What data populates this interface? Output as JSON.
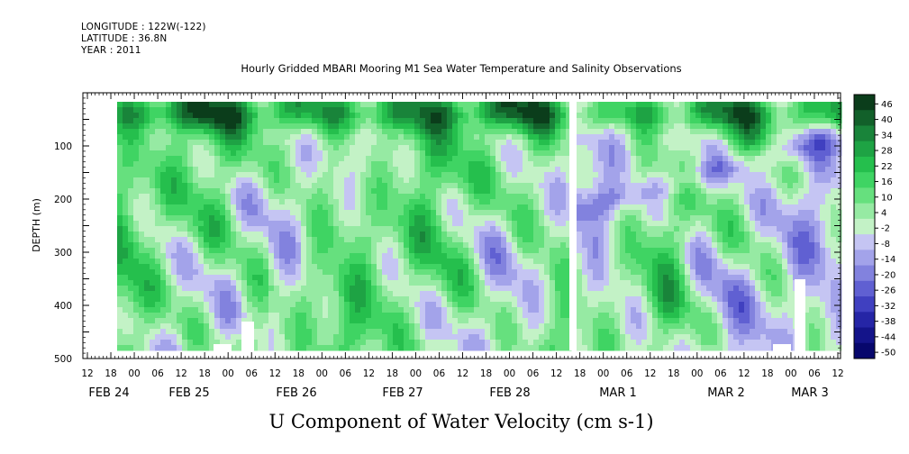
{
  "header": {
    "longitude": "LONGITUDE : 122W(-122)",
    "latitude": "LATITUDE : 36.8N",
    "year": "YEAR : 2011"
  },
  "chart_data": {
    "type": "heatmap",
    "title": "Hourly Gridded MBARI Mooring M1 Sea Water Temperature and Salinity Observations",
    "xlabel": "U Component of Water Velocity (cm s-1)",
    "ylabel": "DEPTH (m)",
    "ylim": [
      500,
      0
    ],
    "y_ticks": [
      100,
      200,
      300,
      400,
      500
    ],
    "x_hour_ticks": [
      "12",
      "18",
      "00",
      "06",
      "12",
      "18",
      "00",
      "06",
      "12",
      "18",
      "00",
      "06",
      "12",
      "18",
      "00",
      "06",
      "12",
      "18",
      "00",
      "06",
      "12",
      "18",
      "00",
      "06",
      "12",
      "18",
      "00",
      "06",
      "12",
      "18",
      "00",
      "06",
      "12"
    ],
    "x_day_labels": [
      "FEB 24",
      "FEB 25",
      "FEB 26",
      "FEB 27",
      "FEB 28",
      "MAR 1",
      "MAR 2",
      "MAR 3"
    ],
    "colorbar_ticks": [
      "46",
      "40",
      "34",
      "28",
      "22",
      "16",
      "10",
      "4",
      "-2",
      "-8",
      "-14",
      "-20",
      "-26",
      "-32",
      "-38",
      "-44",
      "-50"
    ],
    "colorbar_colors": [
      "#0b3d1b",
      "#12602a",
      "#19843a",
      "#1ea344",
      "#25bf4d",
      "#3fd463",
      "#66e07e",
      "#96eaa3",
      "#c3f2c6",
      "#c5c5f3",
      "#a3a3ea",
      "#8282de",
      "#6060d2",
      "#4040c0",
      "#2525a6",
      "#14148a",
      "#07076c"
    ]
  }
}
